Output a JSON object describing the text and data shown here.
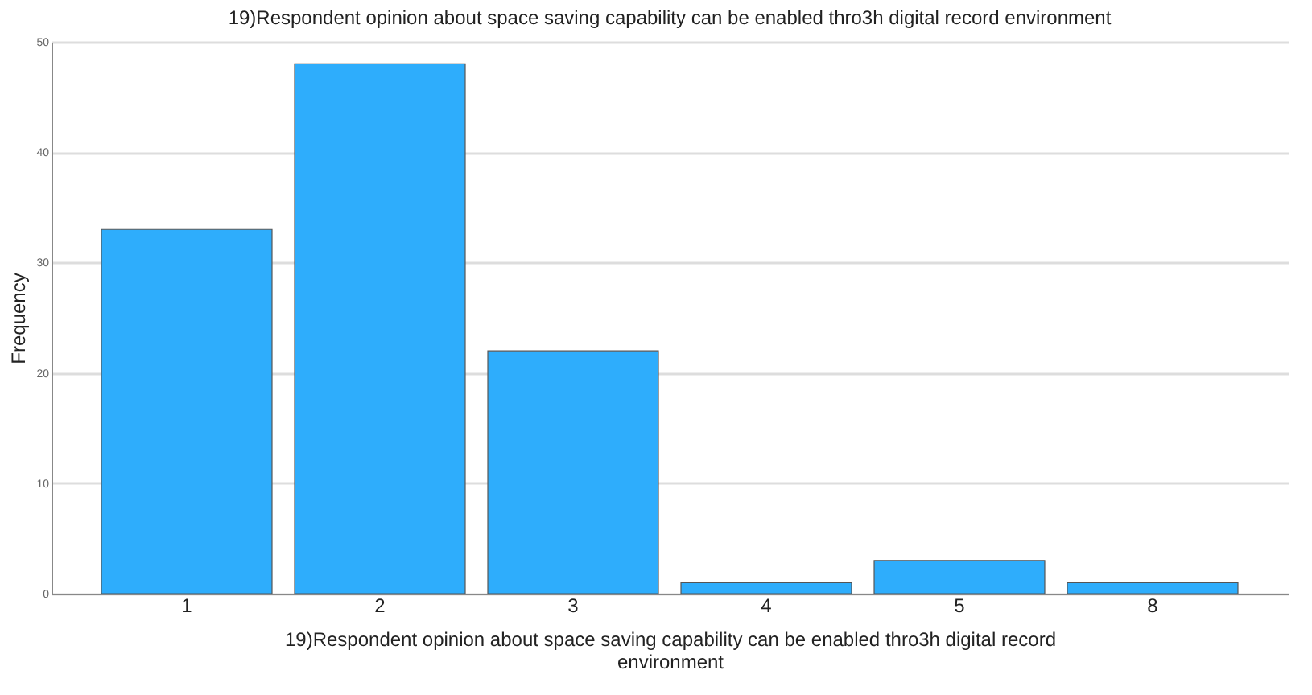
{
  "chart_data": {
    "type": "bar",
    "title": "19)Respondent opinion about space saving capability can be enabled thro3h digital record environment",
    "xlabel": "19)Respondent opinion about space saving capability can be enabled thro3h digital record environment",
    "ylabel": "Frequency",
    "categories": [
      "1",
      "2",
      "3",
      "4",
      "5",
      "8"
    ],
    "values": [
      33,
      48,
      22,
      1,
      3,
      1
    ],
    "color": "#2eadfc",
    "ylim": [
      0,
      50
    ],
    "yticks": [
      0,
      10,
      20,
      30,
      40,
      50
    ],
    "grid": "y"
  }
}
